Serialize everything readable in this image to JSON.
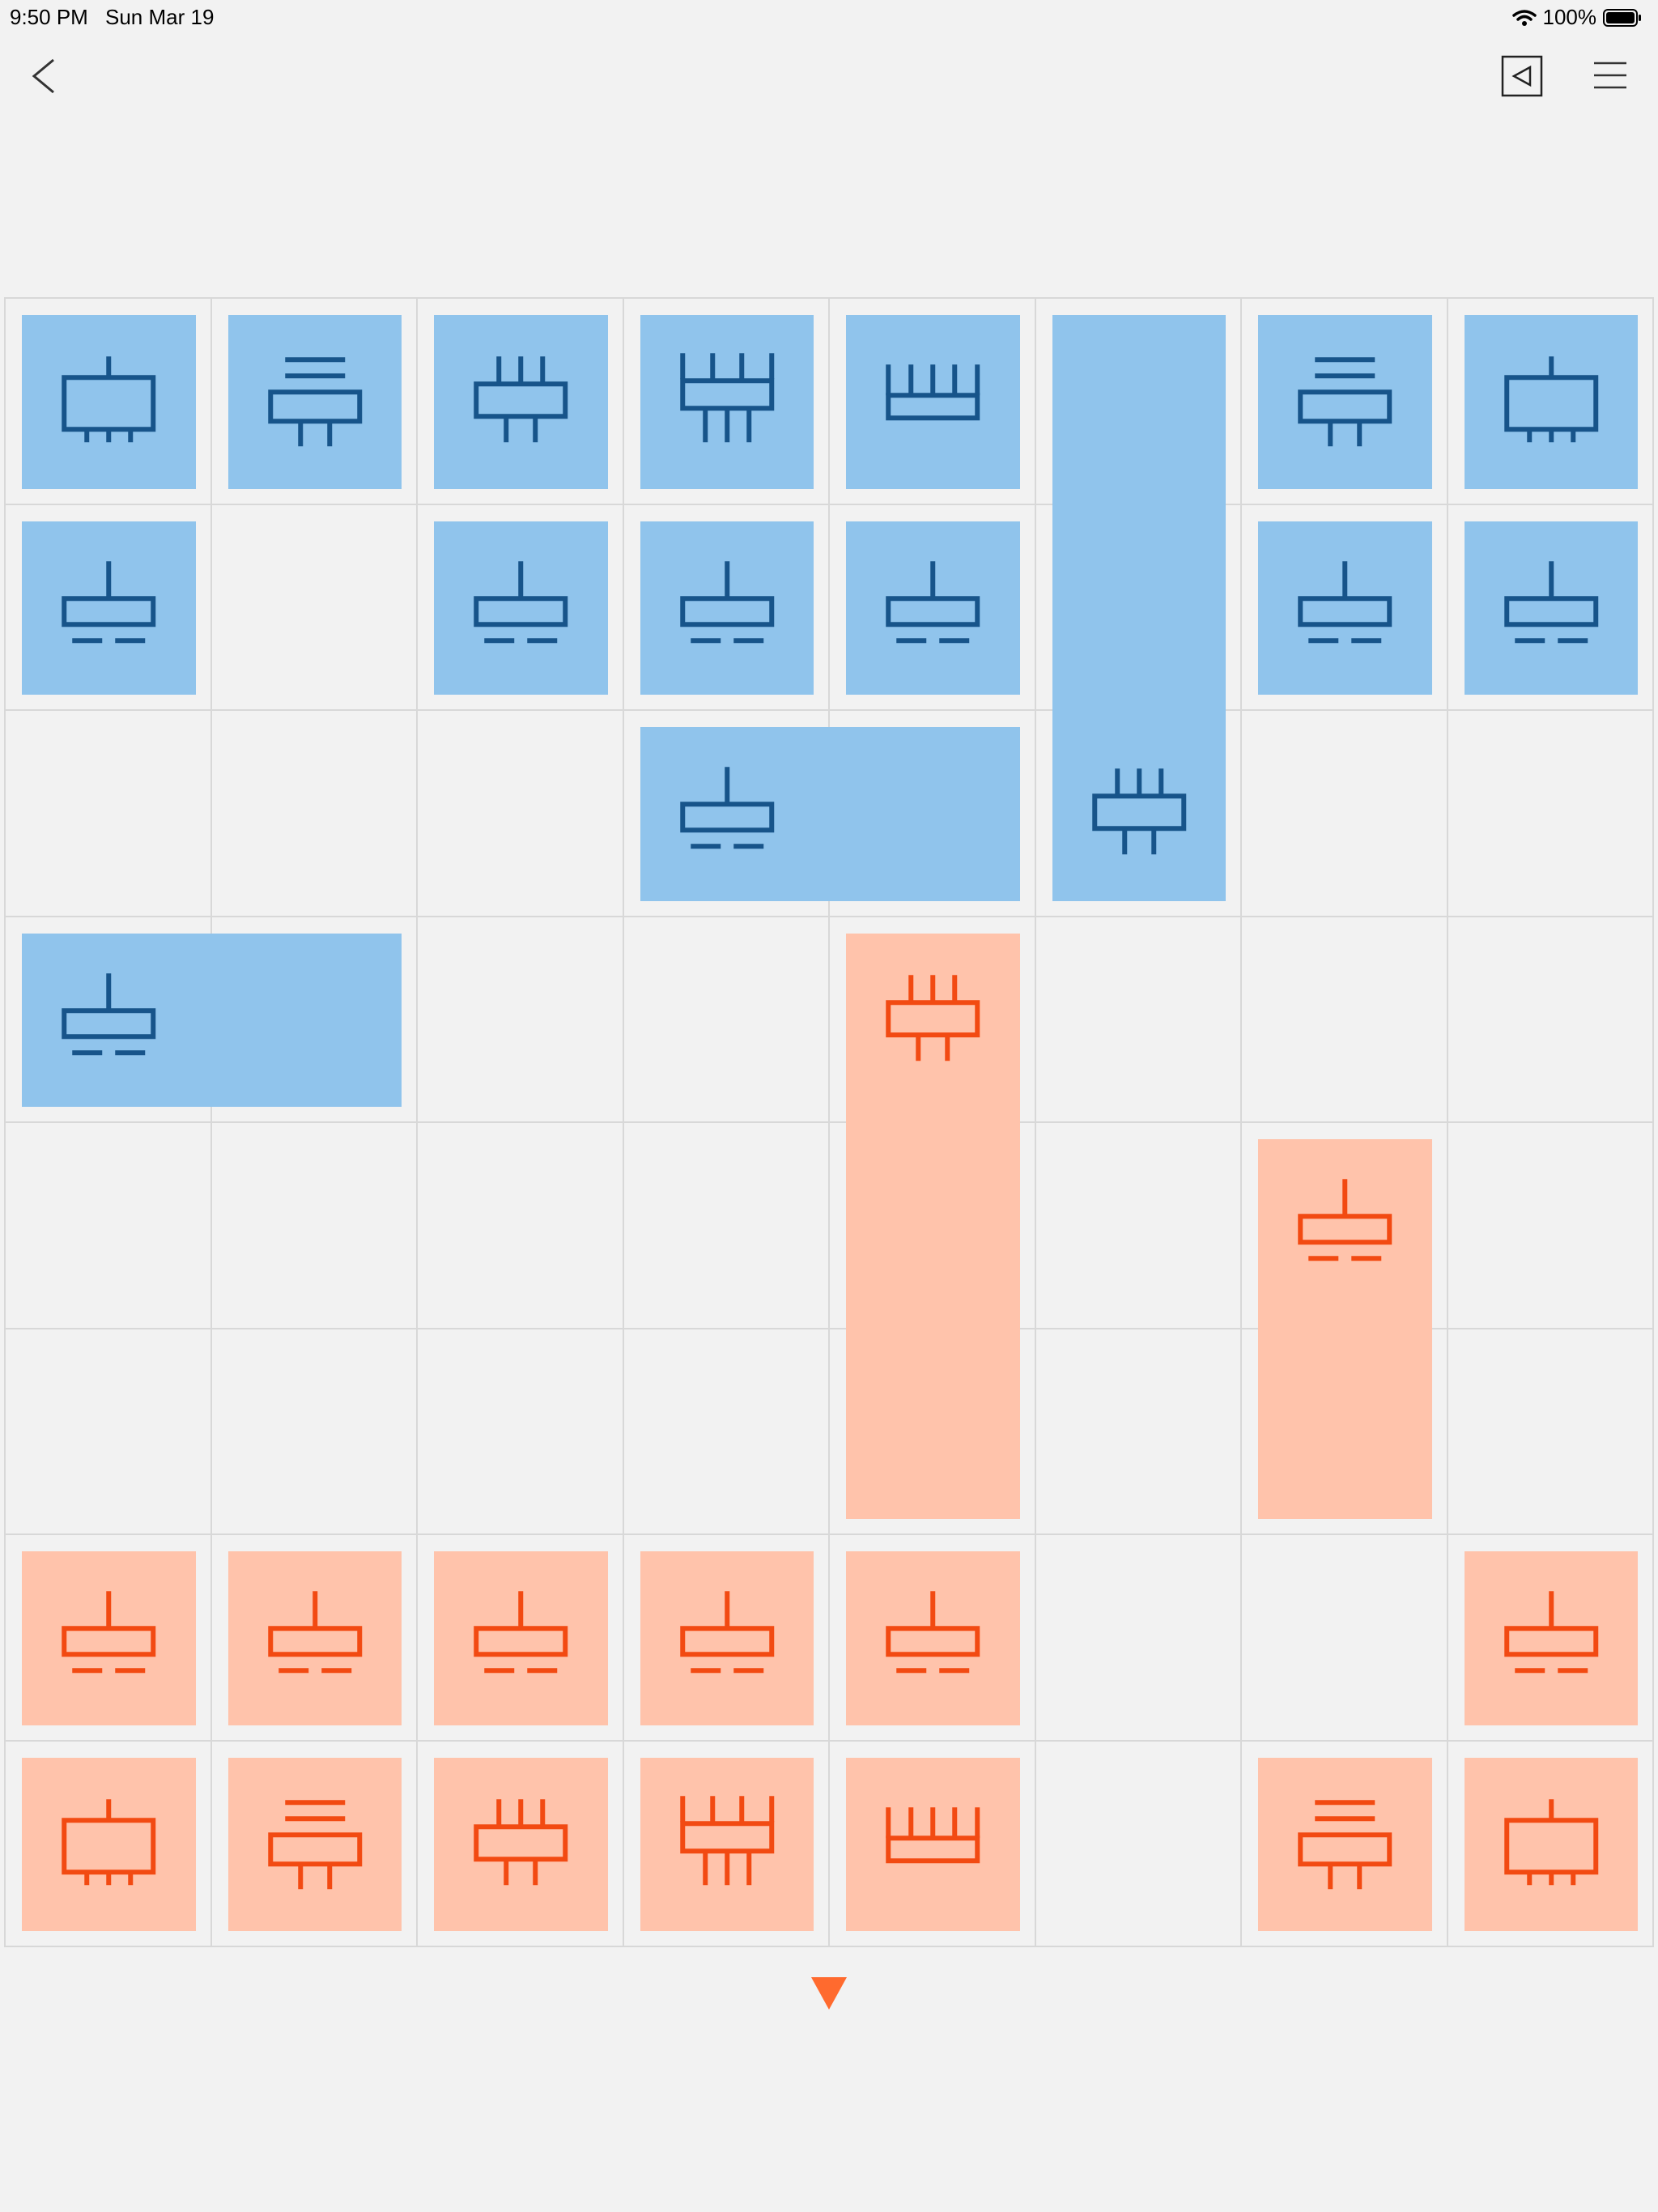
{
  "status_bar": {
    "time": "9:50 PM",
    "date": "Sun Mar 19",
    "battery": "100%"
  },
  "colors": {
    "blue_fill": "#90c4ec",
    "blue_stroke": "#17548a",
    "red_fill": "#ffc3ab",
    "red_stroke": "#f24a12",
    "turn": "#ff6a2e"
  },
  "toolbar": {
    "back_icon": "chevron-left-icon",
    "view_icon": "triangle-left-box-icon",
    "menu_icon": "hamburger-menu-icon"
  },
  "board": {
    "rows": 8,
    "cols": 8,
    "pieces": [
      {
        "side": "blue",
        "row": 0,
        "col": 0,
        "w": 1,
        "h": 1,
        "glyph": "A"
      },
      {
        "side": "blue",
        "row": 0,
        "col": 1,
        "w": 1,
        "h": 1,
        "glyph": "B"
      },
      {
        "side": "blue",
        "row": 0,
        "col": 2,
        "w": 1,
        "h": 1,
        "glyph": "C"
      },
      {
        "side": "blue",
        "row": 0,
        "col": 3,
        "w": 1,
        "h": 1,
        "glyph": "D"
      },
      {
        "side": "blue",
        "row": 0,
        "col": 4,
        "w": 1,
        "h": 1,
        "glyph": "E"
      },
      {
        "side": "blue",
        "row": 0,
        "col": 5,
        "w": 1,
        "h": 3,
        "glyph": "C"
      },
      {
        "side": "blue",
        "row": 0,
        "col": 6,
        "w": 1,
        "h": 1,
        "glyph": "B"
      },
      {
        "side": "blue",
        "row": 0,
        "col": 7,
        "w": 1,
        "h": 1,
        "glyph": "A"
      },
      {
        "side": "blue",
        "row": 1,
        "col": 0,
        "w": 1,
        "h": 1,
        "glyph": "P"
      },
      {
        "side": "blue",
        "row": 1,
        "col": 2,
        "w": 1,
        "h": 1,
        "glyph": "P"
      },
      {
        "side": "blue",
        "row": 1,
        "col": 3,
        "w": 1,
        "h": 1,
        "glyph": "P"
      },
      {
        "side": "blue",
        "row": 1,
        "col": 4,
        "w": 1,
        "h": 1,
        "glyph": "P"
      },
      {
        "side": "blue",
        "row": 1,
        "col": 6,
        "w": 1,
        "h": 1,
        "glyph": "P"
      },
      {
        "side": "blue",
        "row": 1,
        "col": 7,
        "w": 1,
        "h": 1,
        "glyph": "P"
      },
      {
        "side": "blue",
        "row": 2,
        "col": 3,
        "w": 2,
        "h": 1,
        "glyph": "P"
      },
      {
        "side": "blue",
        "row": 3,
        "col": 0,
        "w": 2,
        "h": 1,
        "glyph": "P"
      },
      {
        "side": "red",
        "row": 3,
        "col": 4,
        "w": 1,
        "h": 3,
        "glyph": "C"
      },
      {
        "side": "red",
        "row": 4,
        "col": 6,
        "w": 1,
        "h": 2,
        "glyph": "P"
      },
      {
        "side": "red",
        "row": 6,
        "col": 0,
        "w": 1,
        "h": 1,
        "glyph": "P"
      },
      {
        "side": "red",
        "row": 6,
        "col": 1,
        "w": 1,
        "h": 1,
        "glyph": "P"
      },
      {
        "side": "red",
        "row": 6,
        "col": 2,
        "w": 1,
        "h": 1,
        "glyph": "P"
      },
      {
        "side": "red",
        "row": 6,
        "col": 3,
        "w": 1,
        "h": 1,
        "glyph": "P"
      },
      {
        "side": "red",
        "row": 6,
        "col": 4,
        "w": 1,
        "h": 1,
        "glyph": "P"
      },
      {
        "side": "red",
        "row": 6,
        "col": 7,
        "w": 1,
        "h": 1,
        "glyph": "P"
      },
      {
        "side": "red",
        "row": 7,
        "col": 0,
        "w": 1,
        "h": 1,
        "glyph": "A"
      },
      {
        "side": "red",
        "row": 7,
        "col": 1,
        "w": 1,
        "h": 1,
        "glyph": "B"
      },
      {
        "side": "red",
        "row": 7,
        "col": 2,
        "w": 1,
        "h": 1,
        "glyph": "C"
      },
      {
        "side": "red",
        "row": 7,
        "col": 3,
        "w": 1,
        "h": 1,
        "glyph": "D"
      },
      {
        "side": "red",
        "row": 7,
        "col": 4,
        "w": 1,
        "h": 1,
        "glyph": "E"
      },
      {
        "side": "red",
        "row": 7,
        "col": 6,
        "w": 1,
        "h": 1,
        "glyph": "B"
      },
      {
        "side": "red",
        "row": 7,
        "col": 7,
        "w": 1,
        "h": 1,
        "glyph": "A"
      }
    ]
  },
  "turn": {
    "side": "red",
    "icon": "triangle-down-icon"
  }
}
